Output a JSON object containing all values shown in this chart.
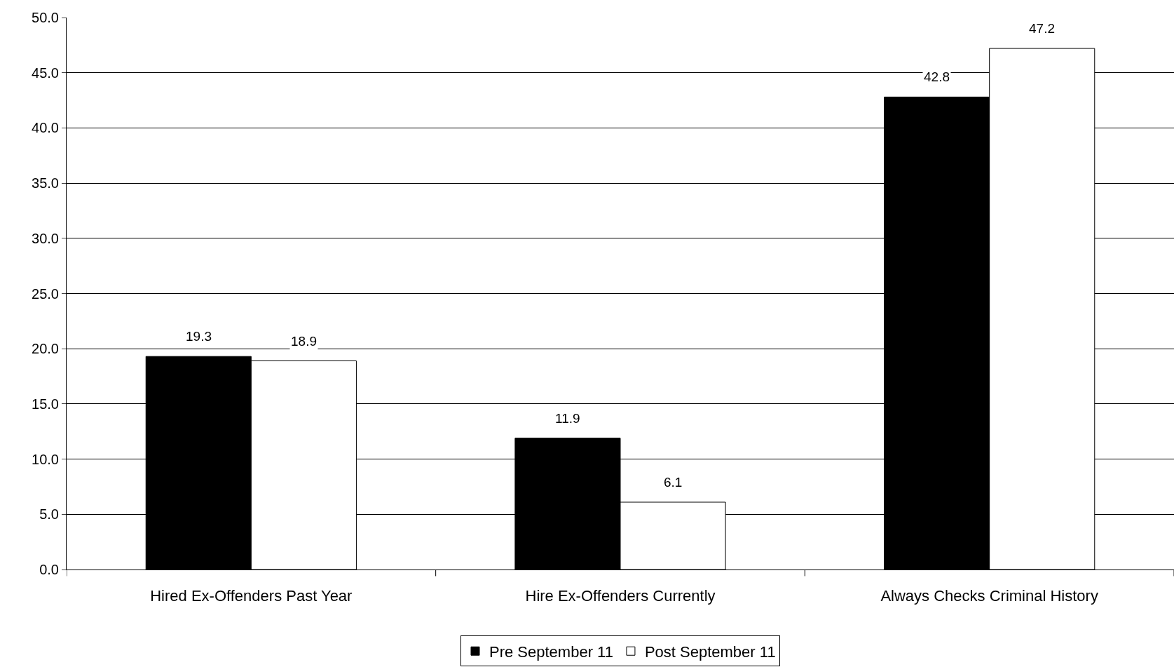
{
  "chart_data": {
    "type": "bar",
    "categories": [
      "Hired Ex-Offenders Past Year",
      "Hire Ex-Offenders Currently",
      "Always Checks Criminal History"
    ],
    "series": [
      {
        "name": "Pre September 11",
        "color": "#000000",
        "values": [
          19.3,
          11.9,
          42.8
        ]
      },
      {
        "name": "Post September 11",
        "color": "#ffffff",
        "values": [
          18.9,
          6.1,
          47.2
        ]
      }
    ],
    "ylim": [
      0,
      50
    ],
    "yticks": [
      {
        "value": 0,
        "label": "0.0"
      },
      {
        "value": 5,
        "label": "5.0"
      },
      {
        "value": 10,
        "label": "10.0"
      },
      {
        "value": 15,
        "label": "15.0"
      },
      {
        "value": 20,
        "label": "20.0"
      },
      {
        "value": 25,
        "label": "25.0"
      },
      {
        "value": 30,
        "label": "30.0"
      },
      {
        "value": 35,
        "label": "35.0"
      },
      {
        "value": 40,
        "label": "40.0"
      },
      {
        "value": 45,
        "label": "45.0"
      },
      {
        "value": 50,
        "label": "50.0"
      }
    ],
    "grid": "y",
    "legend": "bottom",
    "data_labels": true
  }
}
